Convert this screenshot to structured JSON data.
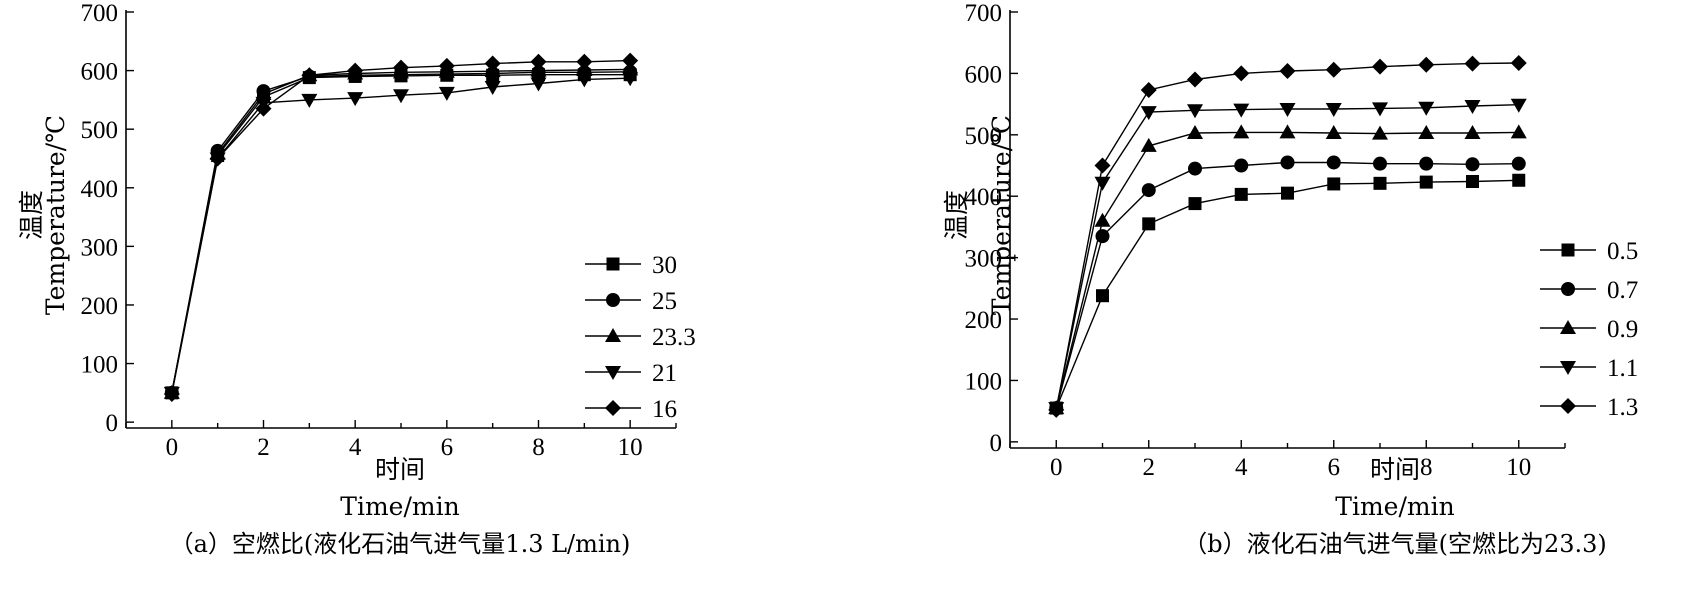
{
  "chart_data": [
    {
      "type": "line",
      "caption": "（a）空燃比(液化石油气进气量1.3 L/min)",
      "xlabel_cn": "时间",
      "xlabel_en": "Time/min",
      "ylabel_cn": "温度",
      "ylabel_en": "Temperature/℃",
      "xlim": [
        -1,
        11
      ],
      "ylim": [
        -10,
        700
      ],
      "xticks": [
        0,
        2,
        4,
        6,
        8,
        10
      ],
      "yticks": [
        0,
        100,
        200,
        300,
        400,
        500,
        600,
        700
      ],
      "legend_position": "right",
      "x": [
        0,
        1,
        2,
        3,
        4,
        5,
        6,
        7,
        8,
        9,
        10
      ],
      "series": [
        {
          "name": "30",
          "marker": "square",
          "values": [
            50,
            455,
            555,
            588,
            590,
            591,
            592,
            592,
            593,
            593,
            593
          ]
        },
        {
          "name": "25",
          "marker": "circle",
          "values": [
            50,
            463,
            565,
            590,
            592,
            593,
            594,
            595,
            597,
            597,
            598
          ]
        },
        {
          "name": "23.3",
          "marker": "triangle-up",
          "values": [
            50,
            458,
            560,
            592,
            595,
            597,
            598,
            599,
            600,
            601,
            602
          ]
        },
        {
          "name": "21",
          "marker": "triangle-down",
          "values": [
            50,
            450,
            545,
            550,
            553,
            558,
            562,
            572,
            578,
            585,
            587
          ]
        },
        {
          "name": "16",
          "marker": "diamond",
          "values": [
            48,
            450,
            535,
            592,
            600,
            605,
            608,
            612,
            615,
            615,
            617
          ]
        }
      ]
    },
    {
      "type": "line",
      "caption": "（b）液化石油气进气量(空燃比为23.3)",
      "xlabel_cn": "时间",
      "xlabel_en": "Time/min",
      "ylabel_cn": "温度",
      "ylabel_en": "Temperature/℃",
      "xlim": [
        -1,
        11
      ],
      "ylim": [
        -10,
        700
      ],
      "xticks": [
        0,
        2,
        4,
        6,
        8,
        10
      ],
      "yticks": [
        0,
        100,
        200,
        300,
        400,
        500,
        600,
        700
      ],
      "legend_position": "right",
      "x": [
        0,
        1,
        2,
        3,
        4,
        5,
        6,
        7,
        8,
        9,
        10
      ],
      "series": [
        {
          "name": "0.5",
          "marker": "square",
          "values": [
            55,
            238,
            355,
            388,
            403,
            405,
            420,
            421,
            423,
            424,
            426
          ]
        },
        {
          "name": "0.7",
          "marker": "circle",
          "values": [
            55,
            335,
            410,
            445,
            450,
            455,
            455,
            453,
            453,
            452,
            453
          ]
        },
        {
          "name": "0.9",
          "marker": "triangle-up",
          "values": [
            55,
            360,
            482,
            503,
            504,
            504,
            503,
            502,
            503,
            503,
            504
          ]
        },
        {
          "name": "1.1",
          "marker": "triangle-down",
          "values": [
            55,
            422,
            537,
            540,
            541,
            542,
            542,
            543,
            544,
            547,
            549
          ]
        },
        {
          "name": "1.3",
          "marker": "diamond",
          "values": [
            52,
            450,
            573,
            590,
            600,
            604,
            606,
            611,
            614,
            616,
            617
          ]
        }
      ]
    }
  ]
}
